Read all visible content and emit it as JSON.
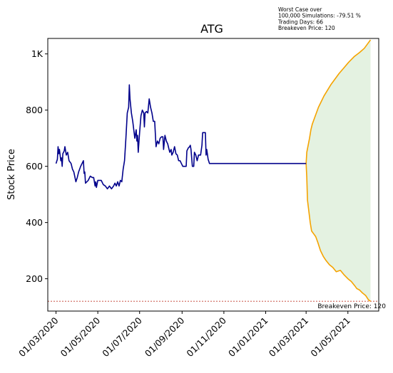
{
  "chart_data": {
    "type": "line",
    "title": "ATG",
    "xlabel": "",
    "ylabel": "Stock Price",
    "grid": false,
    "legend": "none",
    "x_axis": {
      "start": "2020-02-18",
      "end": "2021-06-15",
      "ticks": [
        {
          "date": "2020-03-01",
          "label": "01/03/2020"
        },
        {
          "date": "2020-05-01",
          "label": "01/05/2020"
        },
        {
          "date": "2020-07-01",
          "label": "01/07/2020"
        },
        {
          "date": "2020-09-01",
          "label": "01/09/2020"
        },
        {
          "date": "2020-11-01",
          "label": "01/11/2020"
        },
        {
          "date": "2021-01-01",
          "label": "01/01/2021"
        },
        {
          "date": "2021-03-01",
          "label": "01/03/2021"
        },
        {
          "date": "2021-05-01",
          "label": "01/05/2021"
        }
      ]
    },
    "y_axis": {
      "range": [
        85,
        1055
      ],
      "ticks": [
        {
          "value": 200,
          "label": "200"
        },
        {
          "value": 400,
          "label": "400"
        },
        {
          "value": 600,
          "label": "600"
        },
        {
          "value": 800,
          "label": "800"
        },
        {
          "value": 1000,
          "label": "1K"
        }
      ]
    },
    "annotation": {
      "lines": [
        "Worst Case over",
        "100,000 Simulations: -79.51 %",
        "Trading Days: 66",
        "Breakeven Price: 120"
      ]
    },
    "breakeven": {
      "value": 120,
      "label": "Breakeven Price: 120",
      "color": "#c0392b"
    },
    "historical": {
      "color": "#00008b",
      "points": [
        [
          "2020-03-01",
          610
        ],
        [
          "2020-03-03",
          625
        ],
        [
          "2020-03-04",
          670
        ],
        [
          "2020-03-05",
          645
        ],
        [
          "2020-03-06",
          660
        ],
        [
          "2020-03-08",
          620
        ],
        [
          "2020-03-09",
          630
        ],
        [
          "2020-03-10",
          600
        ],
        [
          "2020-03-11",
          645
        ],
        [
          "2020-03-13",
          655
        ],
        [
          "2020-03-14",
          670
        ],
        [
          "2020-03-16",
          640
        ],
        [
          "2020-03-18",
          650
        ],
        [
          "2020-03-20",
          620
        ],
        [
          "2020-03-23",
          610
        ],
        [
          "2020-03-25",
          590
        ],
        [
          "2020-03-27",
          580
        ],
        [
          "2020-03-30",
          545
        ],
        [
          "2020-04-01",
          560
        ],
        [
          "2020-04-03",
          580
        ],
        [
          "2020-04-06",
          600
        ],
        [
          "2020-04-08",
          610
        ],
        [
          "2020-04-10",
          620
        ],
        [
          "2020-04-11",
          575
        ],
        [
          "2020-04-12",
          580
        ],
        [
          "2020-04-13",
          540
        ],
        [
          "2020-04-15",
          545
        ],
        [
          "2020-04-17",
          550
        ],
        [
          "2020-04-20",
          565
        ],
        [
          "2020-04-23",
          560
        ],
        [
          "2020-04-25",
          560
        ],
        [
          "2020-04-27",
          530
        ],
        [
          "2020-04-28",
          545
        ],
        [
          "2020-04-29",
          525
        ],
        [
          "2020-05-01",
          550
        ],
        [
          "2020-05-03",
          550
        ],
        [
          "2020-05-06",
          550
        ],
        [
          "2020-05-09",
          535
        ],
        [
          "2020-05-12",
          530
        ],
        [
          "2020-05-15",
          520
        ],
        [
          "2020-05-18",
          530
        ],
        [
          "2020-05-21",
          520
        ],
        [
          "2020-05-24",
          530
        ],
        [
          "2020-05-26",
          540
        ],
        [
          "2020-05-28",
          530
        ],
        [
          "2020-05-30",
          545
        ],
        [
          "2020-06-01",
          530
        ],
        [
          "2020-06-03",
          550
        ],
        [
          "2020-06-05",
          545
        ],
        [
          "2020-06-07",
          590
        ],
        [
          "2020-06-09",
          620
        ],
        [
          "2020-06-11",
          700
        ],
        [
          "2020-06-13",
          790
        ],
        [
          "2020-06-15",
          810
        ],
        [
          "2020-06-16",
          890
        ],
        [
          "2020-06-17",
          840
        ],
        [
          "2020-06-19",
          790
        ],
        [
          "2020-06-21",
          760
        ],
        [
          "2020-06-23",
          720
        ],
        [
          "2020-06-24",
          700
        ],
        [
          "2020-06-26",
          730
        ],
        [
          "2020-06-27",
          690
        ],
        [
          "2020-06-28",
          710
        ],
        [
          "2020-06-29",
          650
        ],
        [
          "2020-07-01",
          720
        ],
        [
          "2020-07-03",
          780
        ],
        [
          "2020-07-05",
          800
        ],
        [
          "2020-07-07",
          790
        ],
        [
          "2020-07-08",
          740
        ],
        [
          "2020-07-09",
          790
        ],
        [
          "2020-07-11",
          795
        ],
        [
          "2020-07-13",
          790
        ],
        [
          "2020-07-15",
          840
        ],
        [
          "2020-07-17",
          810
        ],
        [
          "2020-07-19",
          790
        ],
        [
          "2020-07-21",
          760
        ],
        [
          "2020-07-23",
          760
        ],
        [
          "2020-07-25",
          670
        ],
        [
          "2020-07-27",
          690
        ],
        [
          "2020-07-29",
          680
        ],
        [
          "2020-07-31",
          700
        ],
        [
          "2020-08-02",
          705
        ],
        [
          "2020-08-04",
          705
        ],
        [
          "2020-08-05",
          660
        ],
        [
          "2020-08-07",
          710
        ],
        [
          "2020-08-09",
          690
        ],
        [
          "2020-08-11",
          680
        ],
        [
          "2020-08-12",
          670
        ],
        [
          "2020-08-14",
          650
        ],
        [
          "2020-08-16",
          660
        ],
        [
          "2020-08-17",
          640
        ],
        [
          "2020-08-19",
          650
        ],
        [
          "2020-08-21",
          670
        ],
        [
          "2020-08-23",
          645
        ],
        [
          "2020-08-25",
          640
        ],
        [
          "2020-08-27",
          620
        ],
        [
          "2020-08-29",
          620
        ],
        [
          "2020-08-31",
          610
        ],
        [
          "2020-09-02",
          600
        ],
        [
          "2020-09-05",
          600
        ],
        [
          "2020-09-07",
          600
        ],
        [
          "2020-09-08",
          655
        ],
        [
          "2020-09-10",
          665
        ],
        [
          "2020-09-12",
          670
        ],
        [
          "2020-09-13",
          675
        ],
        [
          "2020-09-14",
          660
        ],
        [
          "2020-09-16",
          600
        ],
        [
          "2020-09-18",
          600
        ],
        [
          "2020-09-19",
          650
        ],
        [
          "2020-09-21",
          640
        ],
        [
          "2020-09-23",
          620
        ],
        [
          "2020-09-25",
          640
        ],
        [
          "2020-09-28",
          640
        ],
        [
          "2020-09-30",
          675
        ],
        [
          "2020-10-01",
          720
        ],
        [
          "2020-10-03",
          720
        ],
        [
          "2020-10-05",
          720
        ],
        [
          "2020-10-06",
          640
        ],
        [
          "2020-10-07",
          660
        ],
        [
          "2020-10-09",
          625
        ],
        [
          "2020-10-11",
          610
        ],
        [
          "2021-03-01",
          610
        ]
      ]
    },
    "simulation": {
      "color": "#f5a300",
      "fill_color": "#e4f2e1",
      "upper": [
        [
          "2021-03-01",
          610
        ],
        [
          "2021-03-02",
          650
        ],
        [
          "2021-03-04",
          675
        ],
        [
          "2021-03-06",
          700
        ],
        [
          "2021-03-08",
          730
        ],
        [
          "2021-03-10",
          750
        ],
        [
          "2021-03-13",
          770
        ],
        [
          "2021-03-16",
          790
        ],
        [
          "2021-03-19",
          810
        ],
        [
          "2021-03-23",
          830
        ],
        [
          "2021-03-27",
          850
        ],
        [
          "2021-04-01",
          870
        ],
        [
          "2021-04-06",
          890
        ],
        [
          "2021-04-12",
          910
        ],
        [
          "2021-04-18",
          930
        ],
        [
          "2021-04-25",
          950
        ],
        [
          "2021-05-02",
          970
        ],
        [
          "2021-05-10",
          990
        ],
        [
          "2021-05-18",
          1005
        ],
        [
          "2021-05-25",
          1020
        ],
        [
          "2021-05-31",
          1040
        ],
        [
          "2021-06-03",
          1050
        ]
      ],
      "lower": [
        [
          "2021-03-01",
          610
        ],
        [
          "2021-03-02",
          560
        ],
        [
          "2021-03-03",
          480
        ],
        [
          "2021-03-05",
          440
        ],
        [
          "2021-03-07",
          400
        ],
        [
          "2021-03-09",
          370
        ],
        [
          "2021-03-12",
          360
        ],
        [
          "2021-03-15",
          350
        ],
        [
          "2021-03-18",
          330
        ],
        [
          "2021-03-22",
          300
        ],
        [
          "2021-03-26",
          280
        ],
        [
          "2021-03-30",
          265
        ],
        [
          "2021-04-04",
          250
        ],
        [
          "2021-04-09",
          240
        ],
        [
          "2021-04-14",
          225
        ],
        [
          "2021-04-20",
          230
        ],
        [
          "2021-04-25",
          215
        ],
        [
          "2021-05-01",
          200
        ],
        [
          "2021-05-06",
          190
        ],
        [
          "2021-05-11",
          175
        ],
        [
          "2021-05-14",
          165
        ],
        [
          "2021-05-18",
          160
        ],
        [
          "2021-05-22",
          150
        ],
        [
          "2021-05-27",
          140
        ],
        [
          "2021-05-31",
          125
        ],
        [
          "2021-06-03",
          120
        ]
      ]
    }
  }
}
